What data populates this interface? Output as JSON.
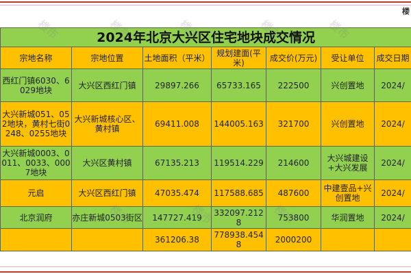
{
  "title": "2024年北京大兴区住宅地块成交情况",
  "corner_text": "楼",
  "headers": [
    "宗地名称",
    "宗地位置",
    "土地面积（平米）",
    "规划建面(平米)",
    "成交价(万元)",
    "受让单位",
    "成交日期"
  ],
  "rows": [
    [
      "西红门镇6030、6029地块",
      "大兴区西红门镇",
      "29897.266",
      "65733.165",
      "222500",
      "兴创置地",
      "2024/"
    ],
    [
      "大兴新城051、052地块，黄村七街0248、0255地块",
      "大兴新城核心区、黄村镇",
      "69411.008",
      "144005.163",
      "321700",
      "兴创置地",
      "2024/"
    ],
    [
      "大兴新城0003、0011、0033、0007地块",
      "大兴区黄村镇",
      "67135.213",
      "119514.229",
      "214600",
      "大兴城建设+大兴发展",
      "2024/"
    ],
    [
      "元启",
      "大兴区西红门镇",
      "47035.474",
      "117588.685",
      "487600",
      "中建壹品+兴创置地",
      "2024/"
    ],
    [
      "北京润府",
      "亦庄新城0503街区",
      "147727.419",
      "332097.2128",
      "753800",
      "华润置地",
      "2024/"
    ],
    [
      "",
      "",
      "361206.38",
      "778938.4548",
      "2000200",
      "",
      ""
    ]
  ],
  "colors": {
    "green": "#92d050",
    "yellow": "#ffc000",
    "border_red": "#c0392b"
  }
}
